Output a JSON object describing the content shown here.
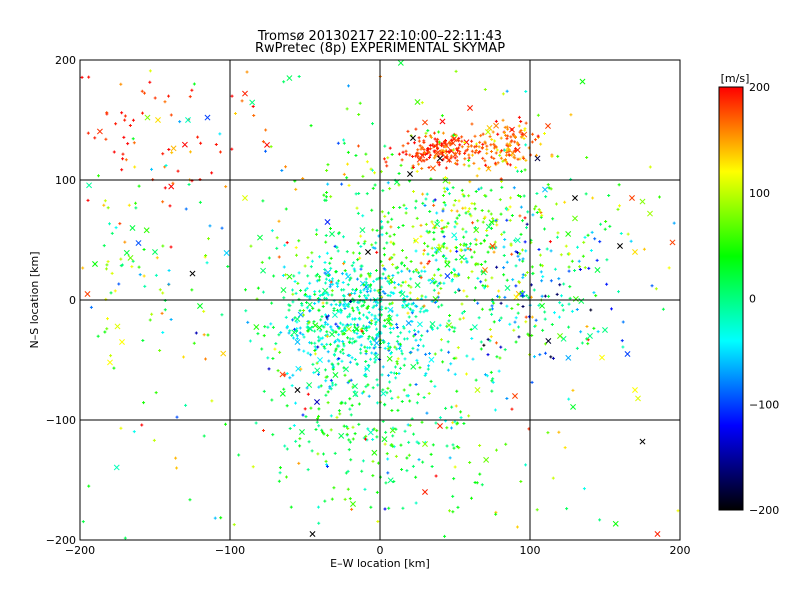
{
  "chart_data": {
    "type": "scatter",
    "title": "Tromsø 20130217 22:10:00–22:11:43",
    "subtitle": "RwPretec (8p) EXPERIMENTAL SKYMAP",
    "xlabel": "E–W location [km]",
    "ylabel": "N–S location [km]",
    "xlim": [
      -200,
      200
    ],
    "ylim": [
      -200,
      200
    ],
    "xticks": [
      -200,
      -100,
      0,
      100,
      200
    ],
    "yticks": [
      -200,
      -100,
      0,
      100,
      200
    ],
    "grid": true,
    "colorbar": {
      "label": "[m/s]",
      "range": [
        -200,
        200
      ],
      "ticks": [
        200,
        100,
        0,
        -100,
        -200
      ],
      "stops": [
        "#000000",
        "#0000ff",
        "#00ffff",
        "#00ff00",
        "#ffff00",
        "#ff0000"
      ]
    },
    "clusters": [
      {
        "cx": -15,
        "cy": -15,
        "sx": 28,
        "sy": 28,
        "n": 620,
        "vel": -20,
        "vsd": 35
      },
      {
        "cx": 40,
        "cy": 125,
        "sx": 13,
        "sy": 7,
        "n": 170,
        "vel": 185,
        "vsd": 18
      },
      {
        "cx": 82,
        "cy": 130,
        "sx": 13,
        "sy": 10,
        "n": 130,
        "vel": 165,
        "vsd": 25
      },
      {
        "cx": 45,
        "cy": 45,
        "sx": 45,
        "sy": 40,
        "n": 480,
        "vel": 55,
        "vsd": 55
      },
      {
        "cx": 90,
        "cy": 5,
        "sx": 40,
        "sy": 35,
        "n": 170,
        "vel": -40,
        "vsd": 70
      },
      {
        "cx": -5,
        "cy": -110,
        "sx": 40,
        "sy": 30,
        "n": 220,
        "vel": 25,
        "vsd": 40
      },
      {
        "cx": -150,
        "cy": 140,
        "sx": 30,
        "sy": 28,
        "n": 55,
        "vel": 190,
        "vsd": 15
      },
      {
        "cx": -170,
        "cy": 40,
        "sx": 20,
        "sy": 55,
        "n": 70,
        "vel": 60,
        "vsd": 80
      },
      {
        "cx": 0,
        "cy": 0,
        "sx": 110,
        "sy": 110,
        "n": 320,
        "vel": 40,
        "vsd": 90
      }
    ],
    "highlighted_points": [
      {
        "x": -155,
        "y": 152,
        "v": 80,
        "m": "x"
      },
      {
        "x": -148,
        "y": 150,
        "v": 130,
        "m": "x"
      },
      {
        "x": -128,
        "y": 150,
        "v": -20,
        "m": "x"
      },
      {
        "x": -115,
        "y": 152,
        "v": -100,
        "m": "x"
      },
      {
        "x": -90,
        "y": 172,
        "v": 190,
        "m": "x"
      },
      {
        "x": -165,
        "y": 60,
        "v": 20,
        "m": "x"
      },
      {
        "x": -150,
        "y": 40,
        "v": 10,
        "m": "x"
      },
      {
        "x": -125,
        "y": 22,
        "v": -200,
        "m": "x"
      },
      {
        "x": -190,
        "y": 30,
        "v": 40,
        "m": "x"
      },
      {
        "x": -195,
        "y": 5,
        "v": 180,
        "m": "x"
      },
      {
        "x": -175,
        "y": -22,
        "v": 110,
        "m": "x"
      },
      {
        "x": -172,
        "y": -35,
        "v": 120,
        "m": "x"
      },
      {
        "x": -180,
        "y": -52,
        "v": 120,
        "m": "x"
      },
      {
        "x": -120,
        "y": -5,
        "v": 30,
        "m": "x"
      },
      {
        "x": -90,
        "y": 85,
        "v": 110,
        "m": "x"
      },
      {
        "x": -80,
        "y": 52,
        "v": 20,
        "m": "x"
      },
      {
        "x": -45,
        "y": -195,
        "v": -200,
        "m": "x"
      },
      {
        "x": -18,
        "y": -170,
        "v": 60,
        "m": "x"
      },
      {
        "x": -65,
        "y": -62,
        "v": 180,
        "m": "x"
      },
      {
        "x": -55,
        "y": -75,
        "v": -200,
        "m": "x"
      },
      {
        "x": -42,
        "y": -85,
        "v": -140,
        "m": "x"
      },
      {
        "x": -52,
        "y": -110,
        "v": 20,
        "m": "x"
      },
      {
        "x": 20,
        "y": 105,
        "v": -200,
        "m": "x"
      },
      {
        "x": 22,
        "y": 135,
        "v": -200,
        "m": "x"
      },
      {
        "x": 30,
        "y": 148,
        "v": 180,
        "m": "x"
      },
      {
        "x": 25,
        "y": 165,
        "v": 60,
        "m": "x"
      },
      {
        "x": 40,
        "y": 118,
        "v": -200,
        "m": "x"
      },
      {
        "x": 60,
        "y": 160,
        "v": 190,
        "m": "x"
      },
      {
        "x": 72,
        "y": 140,
        "v": 100,
        "m": "x"
      },
      {
        "x": 88,
        "y": 142,
        "v": 190,
        "m": "x"
      },
      {
        "x": 112,
        "y": 145,
        "v": 180,
        "m": "x"
      },
      {
        "x": 105,
        "y": 118,
        "v": -180,
        "m": "x"
      },
      {
        "x": 110,
        "y": 92,
        "v": -60,
        "m": "x"
      },
      {
        "x": 135,
        "y": 182,
        "v": 40,
        "m": "x"
      },
      {
        "x": 130,
        "y": 68,
        "v": 70,
        "m": "x"
      },
      {
        "x": 130,
        "y": 85,
        "v": -200,
        "m": "x"
      },
      {
        "x": 168,
        "y": 85,
        "v": 180,
        "m": "x"
      },
      {
        "x": 175,
        "y": 82,
        "v": 80,
        "m": "x"
      },
      {
        "x": 180,
        "y": 72,
        "v": 90,
        "m": "x"
      },
      {
        "x": 195,
        "y": 48,
        "v": 180,
        "m": "x"
      },
      {
        "x": 160,
        "y": 45,
        "v": -200,
        "m": "x"
      },
      {
        "x": 170,
        "y": 40,
        "v": 130,
        "m": "x"
      },
      {
        "x": 145,
        "y": 25,
        "v": 20,
        "m": "x"
      },
      {
        "x": 140,
        "y": -30,
        "v": 0,
        "m": "x"
      },
      {
        "x": 150,
        "y": -25,
        "v": 0,
        "m": "x"
      },
      {
        "x": 165,
        "y": -45,
        "v": -100,
        "m": "x"
      },
      {
        "x": 148,
        "y": -48,
        "v": 120,
        "m": "x"
      },
      {
        "x": 170,
        "y": -75,
        "v": 120,
        "m": "x"
      },
      {
        "x": 172,
        "y": -82,
        "v": 110,
        "m": "x"
      },
      {
        "x": 175,
        "y": -118,
        "v": -200,
        "m": "x"
      },
      {
        "x": 185,
        "y": -195,
        "v": 190,
        "m": "x"
      },
      {
        "x": 90,
        "y": -80,
        "v": 180,
        "m": "x"
      },
      {
        "x": 40,
        "y": -105,
        "v": 190,
        "m": "x"
      },
      {
        "x": 30,
        "y": -120,
        "v": 80,
        "m": "x"
      },
      {
        "x": 30,
        "y": -160,
        "v": 190,
        "m": "x"
      },
      {
        "x": 75,
        "y": 45,
        "v": 180,
        "m": "x"
      },
      {
        "x": 70,
        "y": 25,
        "v": 160,
        "m": "x"
      },
      {
        "x": 85,
        "y": 10,
        "v": 0,
        "m": "x"
      },
      {
        "x": 95,
        "y": 5,
        "v": -90,
        "m": "x"
      },
      {
        "x": 45,
        "y": 20,
        "v": -100,
        "m": "x"
      },
      {
        "x": 35,
        "y": -20,
        "v": 0,
        "m": "x"
      },
      {
        "x": 15,
        "y": 5,
        "v": 0,
        "m": "x"
      },
      {
        "x": -8,
        "y": 40,
        "v": -200,
        "m": "x"
      },
      {
        "x": -35,
        "y": 65,
        "v": -110,
        "m": "x"
      },
      {
        "x": -32,
        "y": 55,
        "v": 10,
        "m": "x"
      },
      {
        "x": -55,
        "y": -35,
        "v": -60,
        "m": "x"
      },
      {
        "x": -40,
        "y": -50,
        "v": -40,
        "m": "x"
      },
      {
        "x": 120,
        "y": -30,
        "v": 70,
        "m": "x"
      },
      {
        "x": 65,
        "y": -75,
        "v": 100,
        "m": "x"
      }
    ]
  }
}
